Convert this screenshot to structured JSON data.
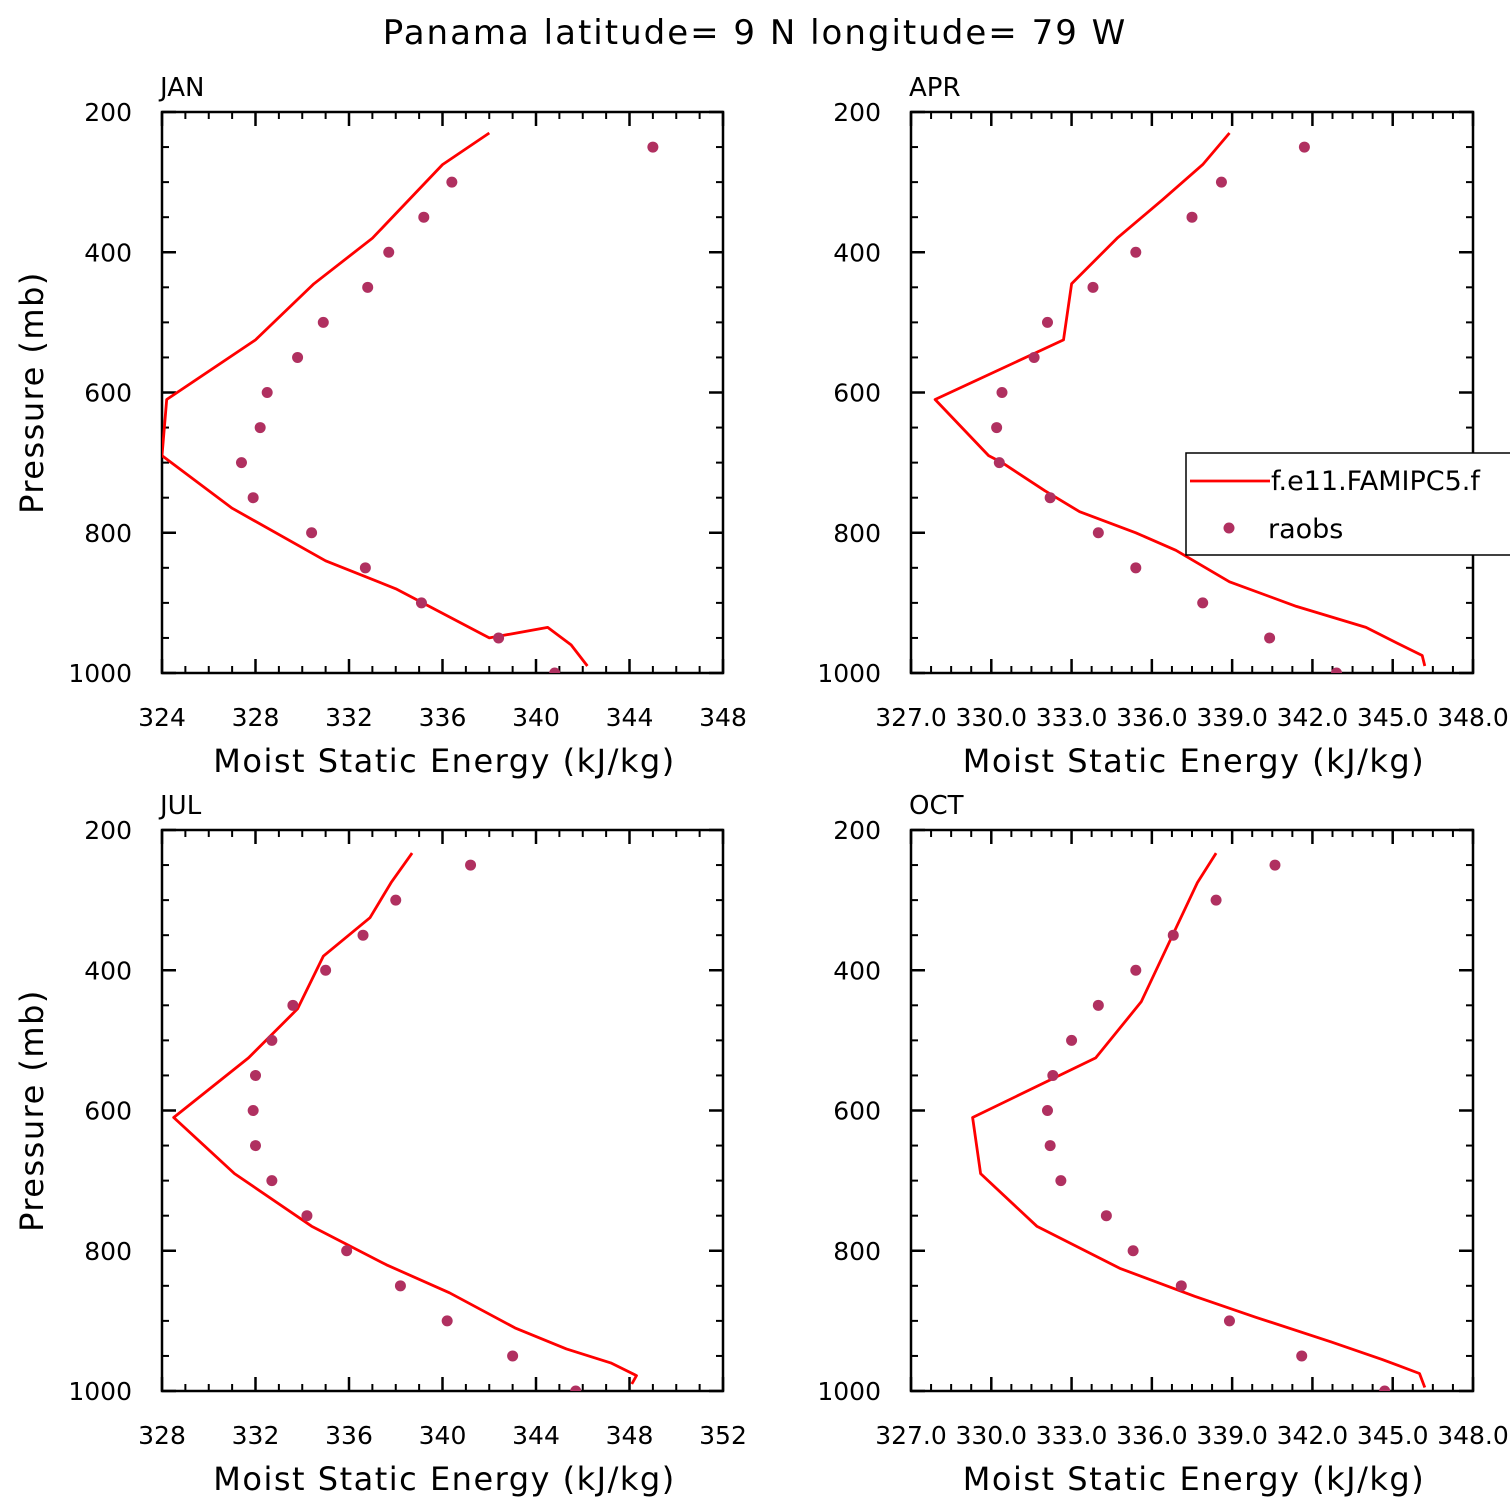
{
  "title": "Panama  latitude= 9 N longitude= 79 W",
  "colors": {
    "model": "#ff0000",
    "obs": "#b03060",
    "axis": "#000000"
  },
  "legend": {
    "entries": [
      {
        "label": "f.e11.FAMIPC5.f",
        "kind": "line"
      },
      {
        "label": "raobs",
        "kind": "marker"
      }
    ],
    "placement": "right-middle of APR panel, clipped by figure edge"
  },
  "chart_data": [
    {
      "type": "line",
      "title": "JAN",
      "xlabel": "Moist Static Energy (kJ/kg)",
      "ylabel": "Pressure (mb)",
      "xlim": [
        324,
        348
      ],
      "ylim": [
        1000,
        200
      ],
      "xticks": [
        "324",
        "328",
        "332",
        "336",
        "340",
        "344",
        "348"
      ],
      "yticks": [
        "200",
        "400",
        "600",
        "800",
        "1000"
      ],
      "series": [
        {
          "name": "f.e11.FAMIPC5.f",
          "kind": "line",
          "points": [
            [
              338.0,
              230
            ],
            [
              336.0,
              275
            ],
            [
              333.0,
              380
            ],
            [
              330.5,
              445
            ],
            [
              328.0,
              525
            ],
            [
              324.2,
              610
            ],
            [
              324.0,
              690
            ],
            [
              327.0,
              765
            ],
            [
              331.0,
              840
            ],
            [
              334.0,
              880
            ],
            [
              338.0,
              950
            ],
            [
              340.5,
              935
            ],
            [
              341.5,
              960
            ],
            [
              342.2,
              990
            ]
          ]
        },
        {
          "name": "raobs",
          "kind": "scatter",
          "points": [
            [
              345.0,
              250
            ],
            [
              336.4,
              300
            ],
            [
              335.2,
              350
            ],
            [
              333.7,
              400
            ],
            [
              332.8,
              450
            ],
            [
              330.9,
              500
            ],
            [
              329.8,
              550
            ],
            [
              328.5,
              600
            ],
            [
              328.2,
              650
            ],
            [
              327.4,
              700
            ],
            [
              327.9,
              750
            ],
            [
              330.4,
              800
            ],
            [
              332.7,
              850
            ],
            [
              335.1,
              900
            ],
            [
              338.4,
              950
            ],
            [
              340.8,
              1000
            ]
          ]
        }
      ]
    },
    {
      "type": "line",
      "title": "APR",
      "xlabel": "Moist Static Energy (kJ/kg)",
      "ylabel": "",
      "xlim": [
        327.0,
        348.0
      ],
      "ylim": [
        1000,
        200
      ],
      "xticks": [
        "327.0",
        "330.0",
        "333.0",
        "336.0",
        "339.0",
        "342.0",
        "345.0",
        "348.0"
      ],
      "yticks": [
        "200",
        "400",
        "600",
        "800",
        "1000"
      ],
      "series": [
        {
          "name": "f.e11.FAMIPC5.f",
          "kind": "line",
          "points": [
            [
              338.9,
              230
            ],
            [
              337.9,
              275
            ],
            [
              336.4,
              325
            ],
            [
              334.7,
              380
            ],
            [
              333.0,
              445
            ],
            [
              332.7,
              525
            ],
            [
              327.9,
              610
            ],
            [
              329.9,
              690
            ],
            [
              330.4,
              700
            ],
            [
              332.0,
              740
            ],
            [
              333.3,
              770
            ],
            [
              335.4,
              800
            ],
            [
              336.9,
              825
            ],
            [
              338.9,
              870
            ],
            [
              341.4,
              905
            ],
            [
              344.0,
              935
            ],
            [
              345.3,
              960
            ],
            [
              346.1,
              975
            ],
            [
              346.2,
              990
            ]
          ]
        },
        {
          "name": "raobs",
          "kind": "scatter",
          "points": [
            [
              341.7,
              250
            ],
            [
              338.6,
              300
            ],
            [
              337.5,
              350
            ],
            [
              335.4,
              400
            ],
            [
              333.8,
              450
            ],
            [
              332.1,
              500
            ],
            [
              331.6,
              550
            ],
            [
              330.4,
              600
            ],
            [
              330.2,
              650
            ],
            [
              330.3,
              700
            ],
            [
              332.2,
              750
            ],
            [
              334.0,
              800
            ],
            [
              335.4,
              850
            ],
            [
              337.9,
              900
            ],
            [
              340.4,
              950
            ],
            [
              342.9,
              1000
            ]
          ]
        }
      ]
    },
    {
      "type": "line",
      "title": "JUL",
      "xlabel": "Moist Static Energy (kJ/kg)",
      "ylabel": "Pressure (mb)",
      "xlim": [
        328,
        352
      ],
      "ylim": [
        1000,
        200
      ],
      "xticks": [
        "328",
        "332",
        "336",
        "340",
        "344",
        "348",
        "352"
      ],
      "yticks": [
        "200",
        "400",
        "600",
        "800",
        "1000"
      ],
      "series": [
        {
          "name": "f.e11.FAMIPC5.f",
          "kind": "line",
          "points": [
            [
              338.7,
              233
            ],
            [
              337.8,
              275
            ],
            [
              336.9,
              325
            ],
            [
              334.9,
              380
            ],
            [
              333.8,
              455
            ],
            [
              331.7,
              525
            ],
            [
              328.5,
              610
            ],
            [
              331.1,
              690
            ],
            [
              334.4,
              765
            ],
            [
              337.6,
              820
            ],
            [
              340.3,
              860
            ],
            [
              343.1,
              910
            ],
            [
              345.3,
              940
            ],
            [
              347.2,
              960
            ],
            [
              348.3,
              978
            ],
            [
              348.1,
              990
            ]
          ]
        },
        {
          "name": "raobs",
          "kind": "scatter",
          "points": [
            [
              341.2,
              250
            ],
            [
              338.0,
              300
            ],
            [
              336.6,
              350
            ],
            [
              335.0,
              400
            ],
            [
              333.6,
              450
            ],
            [
              332.7,
              500
            ],
            [
              332.0,
              550
            ],
            [
              331.9,
              600
            ],
            [
              332.0,
              650
            ],
            [
              332.7,
              700
            ],
            [
              334.2,
              750
            ],
            [
              335.9,
              800
            ],
            [
              338.2,
              850
            ],
            [
              340.2,
              900
            ],
            [
              343.0,
              950
            ],
            [
              345.7,
              1000
            ]
          ]
        }
      ]
    },
    {
      "type": "line",
      "title": "OCT",
      "xlabel": "Moist Static Energy (kJ/kg)",
      "ylabel": "",
      "xlim": [
        327.0,
        348.0
      ],
      "ylim": [
        1000,
        200
      ],
      "xticks": [
        "327.0",
        "330.0",
        "333.0",
        "336.0",
        "339.0",
        "342.0",
        "345.0",
        "348.0"
      ],
      "yticks": [
        "200",
        "400",
        "600",
        "800",
        "1000"
      ],
      "series": [
        {
          "name": "f.e11.FAMIPC5.f",
          "kind": "line",
          "points": [
            [
              338.4,
              233
            ],
            [
              337.7,
              275
            ],
            [
              336.9,
              340
            ],
            [
              335.6,
              445
            ],
            [
              333.9,
              525
            ],
            [
              329.3,
              610
            ],
            [
              329.6,
              690
            ],
            [
              331.7,
              765
            ],
            [
              334.8,
              825
            ],
            [
              337.6,
              865
            ],
            [
              339.9,
              895
            ],
            [
              342.7,
              930
            ],
            [
              344.6,
              955
            ],
            [
              346.0,
              975
            ],
            [
              346.2,
              995
            ]
          ]
        },
        {
          "name": "raobs",
          "kind": "scatter",
          "points": [
            [
              340.6,
              250
            ],
            [
              338.4,
              300
            ],
            [
              336.8,
              350
            ],
            [
              335.4,
              400
            ],
            [
              334.0,
              450
            ],
            [
              333.0,
              500
            ],
            [
              332.3,
              550
            ],
            [
              332.1,
              600
            ],
            [
              332.2,
              650
            ],
            [
              332.6,
              700
            ],
            [
              334.3,
              750
            ],
            [
              335.3,
              800
            ],
            [
              337.1,
              850
            ],
            [
              338.9,
              900
            ],
            [
              341.6,
              950
            ],
            [
              344.7,
              1000
            ]
          ]
        }
      ]
    }
  ]
}
